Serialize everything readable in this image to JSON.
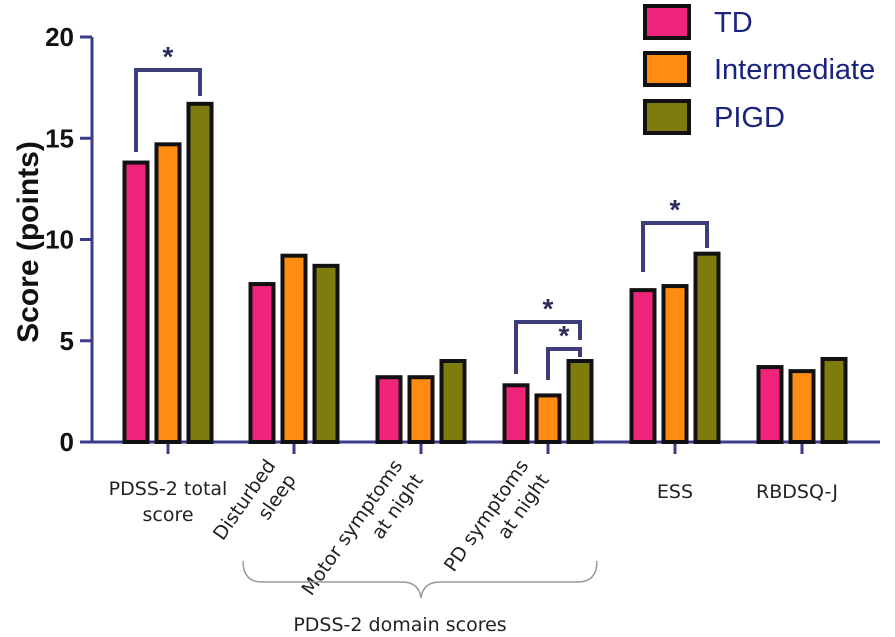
{
  "chart_data": {
    "type": "bar",
    "ylabel": "Score (points)",
    "ylim": [
      0,
      20
    ],
    "yticks": [
      0,
      5,
      10,
      15,
      20
    ],
    "categories": [
      [
        "PDSS-2 total",
        "score"
      ],
      [
        "Disturbed",
        "sleep"
      ],
      [
        "Motor symptoms",
        "at night"
      ],
      [
        "PD symptoms",
        "at night"
      ],
      [
        "ESS"
      ],
      [
        "RBDSQ-J"
      ]
    ],
    "series": [
      {
        "name": "TD",
        "color": "#f0247a",
        "values": [
          13.8,
          7.8,
          3.2,
          2.8,
          7.5,
          3.7
        ]
      },
      {
        "name": "Intermediate",
        "color": "#ff8c10",
        "values": [
          14.7,
          9.2,
          3.2,
          2.3,
          7.7,
          3.5
        ]
      },
      {
        "name": "PIGD",
        "color": "#7e7c0c",
        "values": [
          16.7,
          8.7,
          4.0,
          4.0,
          9.3,
          4.1
        ]
      }
    ],
    "group_label": "PDSS-2 domain scores",
    "significance": [
      {
        "category": 0,
        "from_series": 0,
        "to_series": 2,
        "label": "*"
      },
      {
        "category": 3,
        "from_series": 0,
        "to_series": 2,
        "label": "*"
      },
      {
        "category": 3,
        "from_series": 1,
        "to_series": 2,
        "label": "*"
      },
      {
        "category": 4,
        "from_series": 0,
        "to_series": 2,
        "label": "*"
      }
    ],
    "legend": {
      "position": "top-right",
      "entries": [
        "TD",
        "Intermediate",
        "PIGD"
      ]
    },
    "grid": false,
    "axis_color": "#3b3b8c"
  }
}
